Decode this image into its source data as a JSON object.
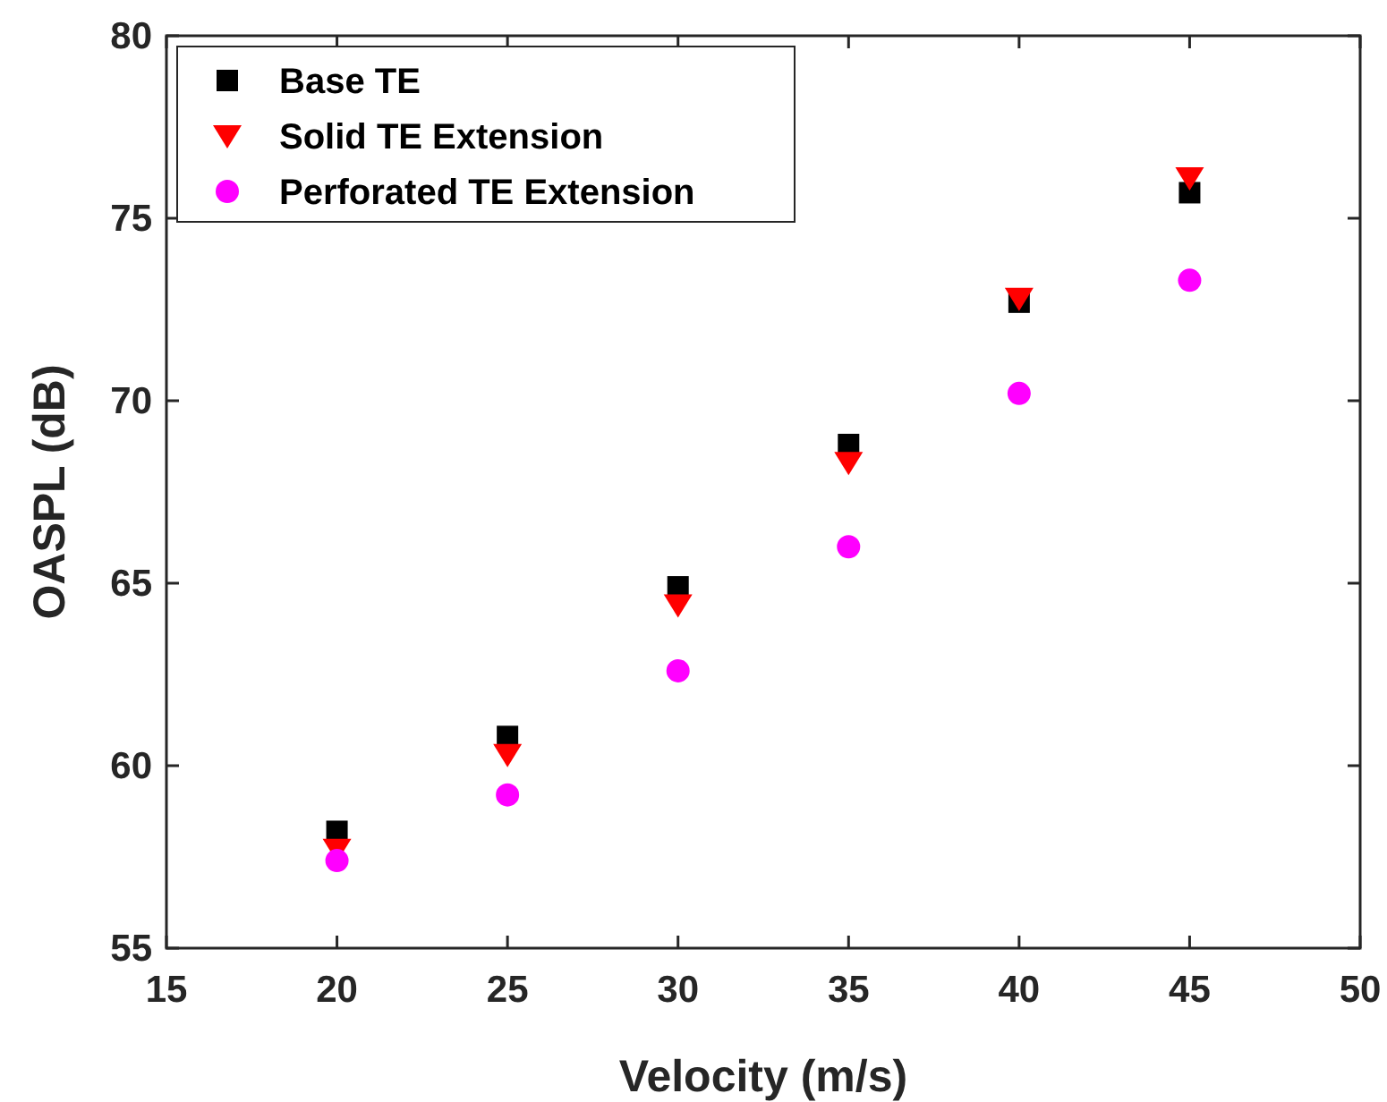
{
  "chart_data": {
    "type": "scatter",
    "xlabel": "Velocity (m/s)",
    "ylabel": "OASPL (dB)",
    "x": [
      20,
      25,
      30,
      35,
      40,
      45
    ],
    "xlim": [
      15,
      50
    ],
    "xticks": [
      15,
      20,
      25,
      30,
      35,
      40,
      45,
      50
    ],
    "ylim": [
      55,
      80
    ],
    "yticks": [
      55,
      60,
      65,
      70,
      75,
      80
    ],
    "grid": false,
    "legend": "top left",
    "series": [
      {
        "name": "Base TE",
        "color": "#000000",
        "marker": "square",
        "values": [
          58.2,
          60.8,
          64.9,
          68.8,
          72.7,
          75.7
        ]
      },
      {
        "name": "Solid TE Extension",
        "color": "#ff0000",
        "marker": "triangle",
        "values": [
          57.7,
          60.3,
          64.4,
          68.3,
          72.8,
          76.1
        ]
      },
      {
        "name": "Perforated TE Extension",
        "color": "#ff00ff",
        "marker": "circle",
        "values": [
          57.4,
          59.2,
          62.6,
          66.0,
          70.2,
          73.3
        ]
      }
    ]
  }
}
